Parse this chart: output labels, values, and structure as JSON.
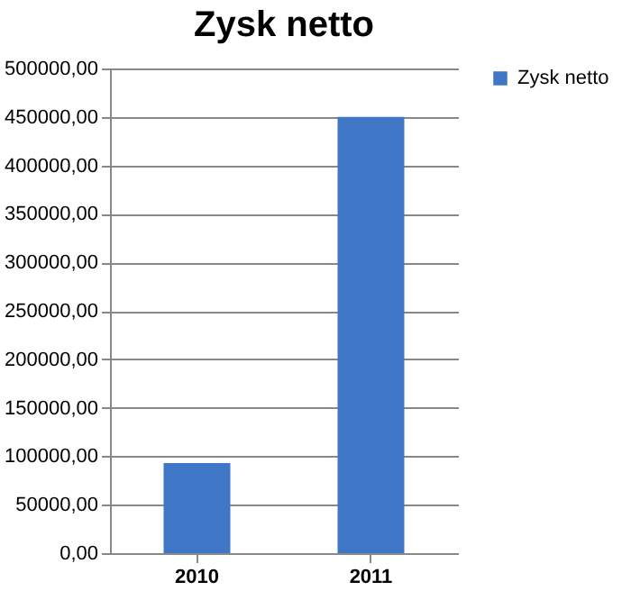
{
  "chart_data": {
    "type": "bar",
    "title": "Zysk netto",
    "categories": [
      "2010",
      "2011"
    ],
    "series": [
      {
        "name": "Zysk netto",
        "color": "#3f77c6",
        "values": [
          93000,
          450000
        ]
      }
    ],
    "ylim": [
      0,
      500000
    ],
    "yticks": [
      {
        "value": 0,
        "label": "0,00"
      },
      {
        "value": 50000,
        "label": "50000,00"
      },
      {
        "value": 100000,
        "label": "100000,00"
      },
      {
        "value": 150000,
        "label": "150000,00"
      },
      {
        "value": 200000,
        "label": "200000,00"
      },
      {
        "value": 250000,
        "label": "250000,00"
      },
      {
        "value": 300000,
        "label": "300000,00"
      },
      {
        "value": 350000,
        "label": "350000,00"
      },
      {
        "value": 400000,
        "label": "400000,00"
      },
      {
        "value": 450000,
        "label": "450000,00"
      },
      {
        "value": 500000,
        "label": "500000,00"
      }
    ],
    "grid": "y",
    "legend": "right"
  }
}
